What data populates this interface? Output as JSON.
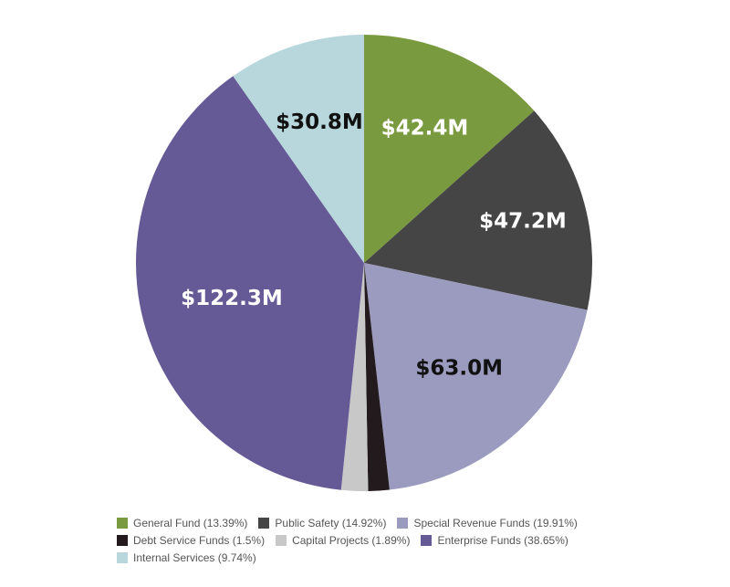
{
  "chart_data": {
    "type": "pie",
    "legend_position": "bottom",
    "slices": [
      {
        "name": "General Fund",
        "percent": 13.39,
        "label": "$42.4M",
        "color": "#7a9a3f",
        "label_color": "#ffffff",
        "legend": "General Fund (13.39%)"
      },
      {
        "name": "Public Safety",
        "percent": 14.92,
        "label": "$47.2M",
        "color": "#454545",
        "label_color": "#ffffff",
        "legend": "Public Safety (14.92%)"
      },
      {
        "name": "Special Revenue Funds",
        "percent": 19.91,
        "label": "$63.0M",
        "color": "#9b9bbf",
        "label_color": "#111111",
        "legend": "Special Revenue Funds (19.91%)"
      },
      {
        "name": "Debt Service Funds",
        "percent": 1.5,
        "label": "",
        "color": "#231a1e",
        "label_color": "#ffffff",
        "legend": "Debt Service Funds (1.5%)"
      },
      {
        "name": "Capital Projects",
        "percent": 1.89,
        "label": "",
        "color": "#c8c8c8",
        "label_color": "#111111",
        "legend": "Capital Projects (1.89%)"
      },
      {
        "name": "Enterprise Funds",
        "percent": 38.65,
        "label": "$122.3M",
        "color": "#655a96",
        "label_color": "#ffffff",
        "legend": "Enterprise Funds (38.65%)"
      },
      {
        "name": "Internal Services",
        "percent": 9.74,
        "label": "$30.8M",
        "color": "#b7d7dc",
        "label_color": "#111111",
        "legend": "Internal Services (9.74%)"
      }
    ]
  }
}
